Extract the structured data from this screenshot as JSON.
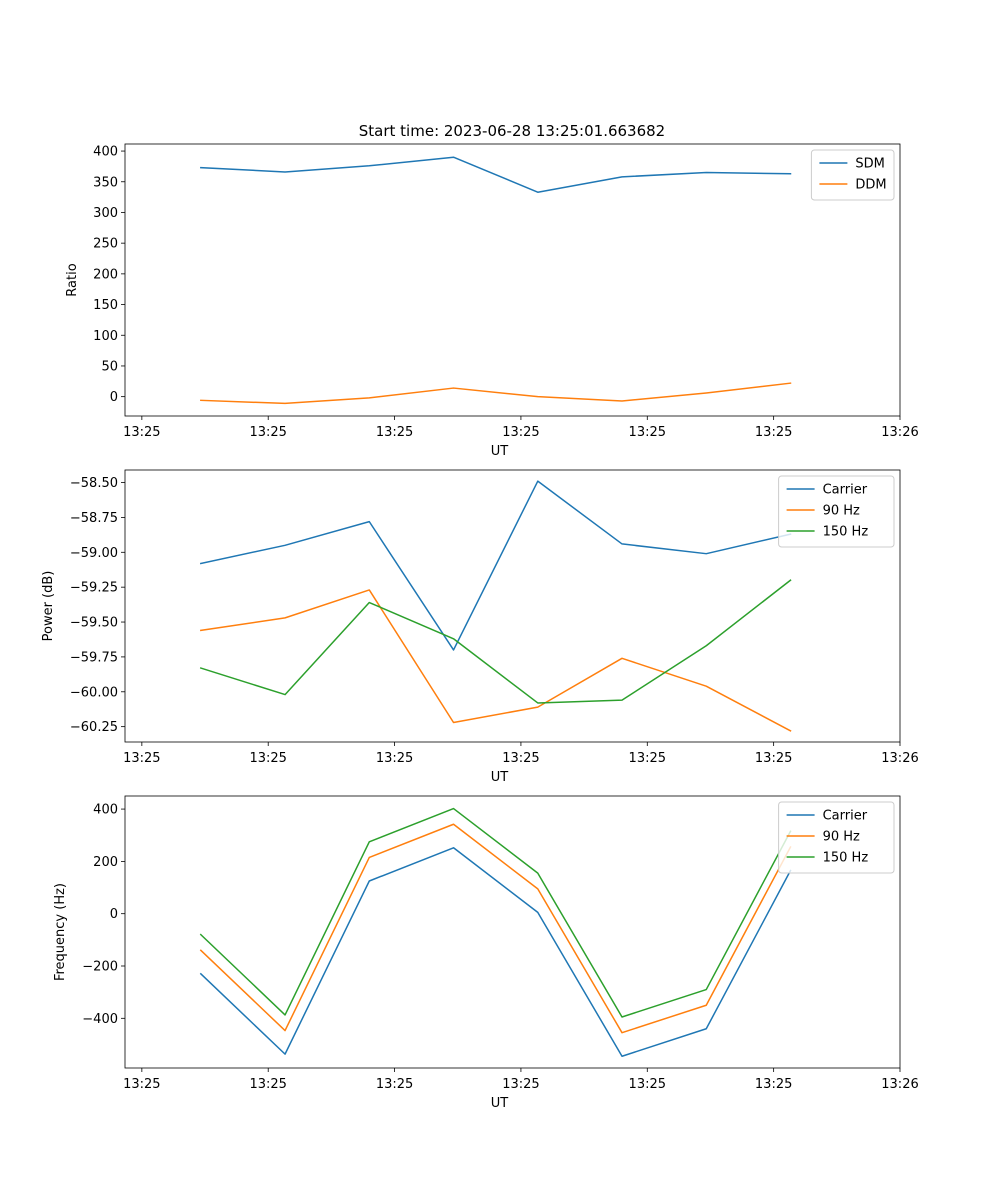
{
  "figure": {
    "title": "Start time: 2023-06-28 13:25:01.663682"
  },
  "chart_data": [
    {
      "type": "line",
      "x": [
        0.7,
        1.7,
        2.7,
        3.7,
        4.7,
        5.7,
        6.7,
        7.7
      ],
      "xlim": [
        -0.2,
        9.0
      ],
      "xticks": [
        0,
        1.5,
        3,
        4.5,
        6,
        7.5,
        9
      ],
      "xticklabels": [
        "13:25",
        "13:25",
        "13:25",
        "13:25",
        "13:25",
        "13:25",
        "13:26"
      ],
      "xlabel": "UT",
      "ylabel": "Ratio",
      "ylim": [
        -31.5,
        411.5
      ],
      "yticks": [
        0,
        50,
        100,
        150,
        200,
        250,
        300,
        350,
        400
      ],
      "legend_position": "upper right",
      "series": [
        {
          "name": "SDM",
          "color": "#1f77b4",
          "values": [
            373,
            366,
            376,
            390,
            333,
            358,
            365,
            363
          ]
        },
        {
          "name": "DDM",
          "color": "#ff7f0e",
          "values": [
            -6,
            -11,
            -2,
            14,
            0,
            -7,
            6,
            22
          ]
        }
      ]
    },
    {
      "type": "line",
      "x": [
        0.7,
        1.7,
        2.7,
        3.7,
        4.7,
        5.7,
        6.7,
        7.7
      ],
      "xlim": [
        -0.2,
        9.0
      ],
      "xticks": [
        0,
        1.5,
        3,
        4.5,
        6,
        7.5,
        9
      ],
      "xticklabels": [
        "13:25",
        "13:25",
        "13:25",
        "13:25",
        "13:25",
        "13:25",
        "13:26"
      ],
      "xlabel": "UT",
      "ylabel": "Power (dB)",
      "ylim": [
        -60.36,
        -58.41
      ],
      "yticks": [
        -60.25,
        -60.0,
        -59.75,
        -59.5,
        -59.25,
        -59.0,
        -58.75,
        -58.5
      ],
      "yticklabels": [
        "−60.25",
        "−60.00",
        "−59.75",
        "−59.50",
        "−59.25",
        "−59.00",
        "−58.75",
        "−58.50"
      ],
      "legend_position": "upper right",
      "series": [
        {
          "name": "Carrier",
          "color": "#1f77b4",
          "values": [
            -59.08,
            -58.95,
            -58.78,
            -59.7,
            -58.49,
            -58.94,
            -59.01,
            -58.87
          ]
        },
        {
          "name": "90 Hz",
          "color": "#ff7f0e",
          "values": [
            -59.56,
            -59.47,
            -59.27,
            -60.22,
            -60.11,
            -59.76,
            -59.96,
            -60.28
          ]
        },
        {
          "name": "150 Hz",
          "color": "#2ca02c",
          "values": [
            -59.83,
            -60.02,
            -59.36,
            -59.62,
            -60.08,
            -60.06,
            -59.67,
            -59.2
          ]
        }
      ]
    },
    {
      "type": "line",
      "x": [
        0.7,
        1.7,
        2.7,
        3.7,
        4.7,
        5.7,
        6.7,
        7.7
      ],
      "xlim": [
        -0.2,
        9.0
      ],
      "xticks": [
        0,
        1.5,
        3,
        4.5,
        6,
        7.5,
        9
      ],
      "xticklabels": [
        "13:25",
        "13:25",
        "13:25",
        "13:25",
        "13:25",
        "13:25",
        "13:26"
      ],
      "xlabel": "UT",
      "ylabel": "Frequency (Hz)",
      "ylim": [
        -590,
        450
      ],
      "yticks": [
        -400,
        -200,
        0,
        200,
        400
      ],
      "yticklabels": [
        "−400",
        "−200",
        "0",
        "200",
        "400"
      ],
      "legend_position": "upper right",
      "series": [
        {
          "name": "Carrier",
          "color": "#1f77b4",
          "values": [
            -230,
            -537,
            125,
            252,
            5,
            -545,
            -440,
            165
          ]
        },
        {
          "name": "90 Hz",
          "color": "#ff7f0e",
          "values": [
            -140,
            -447,
            215,
            342,
            95,
            -455,
            -350,
            255
          ]
        },
        {
          "name": "150 Hz",
          "color": "#2ca02c",
          "values": [
            -80,
            -387,
            275,
            402,
            155,
            -395,
            -290,
            315
          ]
        }
      ]
    }
  ]
}
